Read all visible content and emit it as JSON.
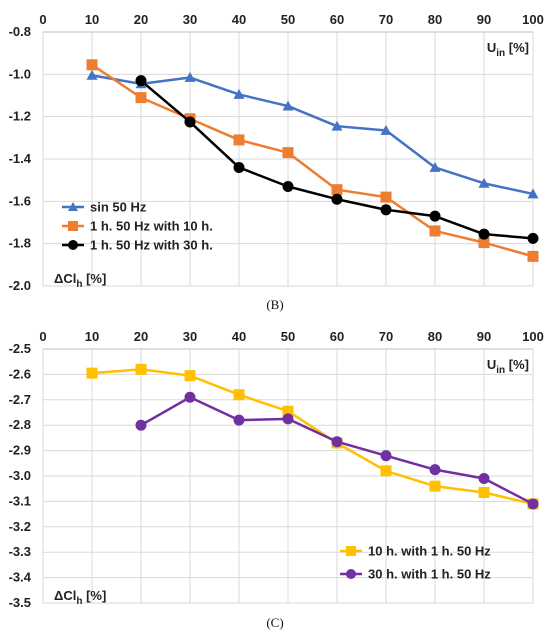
{
  "chart_data": [
    {
      "type": "line",
      "panel_label": "(B)",
      "x_label": "U",
      "x_label_sub": "in",
      "x_label_unit": "[%]",
      "y_label": "ΔCl",
      "y_label_sub": "h",
      "y_label_unit": "[%]",
      "xlim": [
        0,
        100
      ],
      "ylim": [
        -2.0,
        -0.8
      ],
      "x_ticks": [
        "0",
        "10",
        "20",
        "30",
        "40",
        "50",
        "60",
        "70",
        "80",
        "90",
        "100"
      ],
      "y_ticks": [
        "-0.8",
        "-1.0",
        "-1.2",
        "-1.4",
        "-1.6",
        "-1.8",
        "-2.0"
      ],
      "grid": true,
      "legend_position": "bottom-left",
      "series": [
        {
          "name": "sin 50 Hz",
          "color": "#4472C4",
          "marker": "triangle",
          "x": [
            10,
            20,
            30,
            40,
            50,
            60,
            70,
            80,
            90,
            100
          ],
          "y": [
            -1.005,
            -1.045,
            -1.015,
            -1.095,
            -1.15,
            -1.245,
            -1.265,
            -1.44,
            -1.515,
            -1.565
          ]
        },
        {
          "name": "1 h. 50 Hz with 10 h.",
          "color": "#ED7D31",
          "marker": "square",
          "x": [
            10,
            20,
            30,
            40,
            50,
            60,
            70,
            80,
            90,
            100
          ],
          "y": [
            -0.955,
            -1.11,
            -1.21,
            -1.31,
            -1.37,
            -1.545,
            -1.58,
            -1.74,
            -1.795,
            -1.86
          ]
        },
        {
          "name": "1 h. 50 Hz with 30 h.",
          "color": "#000000",
          "marker": "circle",
          "x": [
            20,
            30,
            40,
            50,
            60,
            70,
            80,
            90,
            100
          ],
          "y": [
            -1.03,
            -1.225,
            -1.44,
            -1.53,
            -1.59,
            -1.64,
            -1.67,
            -1.755,
            -1.775
          ]
        }
      ]
    },
    {
      "type": "line",
      "panel_label": "(C)",
      "x_label": "U",
      "x_label_sub": "in",
      "x_label_unit": "[%]",
      "y_label": "ΔCl",
      "y_label_sub": "h",
      "y_label_unit": "[%]",
      "xlim": [
        0,
        100
      ],
      "ylim": [
        -3.5,
        -2.5
      ],
      "x_ticks": [
        "0",
        "10",
        "20",
        "30",
        "40",
        "50",
        "60",
        "70",
        "80",
        "90",
        "100"
      ],
      "y_ticks": [
        "-2.5",
        "-2.6",
        "-2.7",
        "-2.8",
        "-2.9",
        "-3.0",
        "-3.1",
        "-3.2",
        "-3.3",
        "-3.4",
        "-3.5"
      ],
      "grid": true,
      "legend_position": "bottom-right",
      "series": [
        {
          "name": "10 h. with 1 h. 50 Hz",
          "color": "#FFC000",
          "marker": "square",
          "x": [
            10,
            20,
            30,
            40,
            50,
            60,
            70,
            80,
            90,
            100
          ],
          "y": [
            -2.595,
            -2.58,
            -2.605,
            -2.68,
            -2.745,
            -2.87,
            -2.98,
            -3.04,
            -3.065,
            -3.11
          ]
        },
        {
          "name": "30 h. with 1 h. 50 Hz",
          "color": "#7030A0",
          "marker": "circle",
          "x": [
            20,
            30,
            40,
            50,
            60,
            70,
            80,
            90,
            100
          ],
          "y": [
            -2.8,
            -2.69,
            -2.78,
            -2.775,
            -2.865,
            -2.92,
            -2.975,
            -3.01,
            -3.11
          ]
        }
      ]
    }
  ]
}
